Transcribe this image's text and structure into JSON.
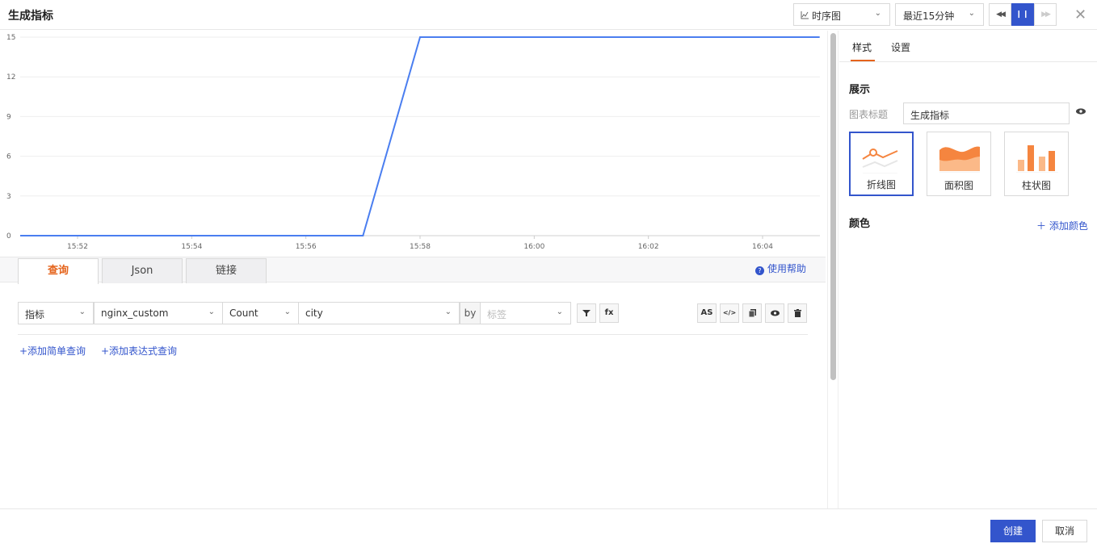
{
  "header": {
    "title": "生成指标",
    "chart_type_select": "时序图",
    "time_range_select": "最近15分钟",
    "chart_type_icon": "line-chart-icon",
    "controls": {
      "rewind_icon": "rewind-icon",
      "pause_icon": "pause-icon",
      "forward_icon": "fast-forward-icon"
    },
    "close_icon": "close-icon"
  },
  "chart_data": {
    "type": "line",
    "x": [
      "15:50:40",
      "15:57",
      "15:58",
      "16:05"
    ],
    "series": [
      {
        "values": [
          0,
          0,
          15,
          15
        ],
        "color": "#4a7ef0"
      }
    ],
    "x_ticks": [
      "15:52",
      "15:54",
      "15:56",
      "15:58",
      "16:00",
      "16:02",
      "16:04"
    ],
    "y_ticks": [
      "0",
      "3",
      "6",
      "9",
      "12",
      "15"
    ],
    "ylim": [
      0,
      15
    ],
    "grid": true,
    "title": "",
    "xlabel": "",
    "ylabel": ""
  },
  "query_tabs": [
    {
      "label": "查询",
      "active": true
    },
    {
      "label": "Json",
      "active": false
    },
    {
      "label": "链接",
      "active": false
    }
  ],
  "help_label": "使用帮助",
  "query": {
    "type": "指标",
    "measurement": "nginx_custom",
    "aggregate": "Count",
    "field": "city",
    "by_label": "by",
    "tag_placeholder": "标签",
    "filter_icon": "filter-icon",
    "fx_label": "fx",
    "as_label": "AS",
    "code_icon": "code-icon",
    "copy_icon": "copy-icon",
    "eye_icon": "eye-icon",
    "delete_icon": "trash-icon"
  },
  "add_links": {
    "simple": "+添加简单查询",
    "expression": "+添加表达式查询"
  },
  "right_panel": {
    "tabs": [
      {
        "label": "样式",
        "active": true
      },
      {
        "label": "设置",
        "active": false
      }
    ],
    "section_display": "展示",
    "chart_title_label": "图表标题",
    "chart_title_value": "生成指标",
    "chart_types": [
      {
        "label": "折线图",
        "selected": true
      },
      {
        "label": "面积图",
        "selected": false
      },
      {
        "label": "柱状图",
        "selected": false
      }
    ],
    "section_color": "颜色",
    "add_color_label": "＋ 添加颜色",
    "accent": "#e5641c"
  },
  "footer": {
    "create_label": "创建",
    "cancel_label": "取消",
    "primary_color": "#3355cc"
  }
}
